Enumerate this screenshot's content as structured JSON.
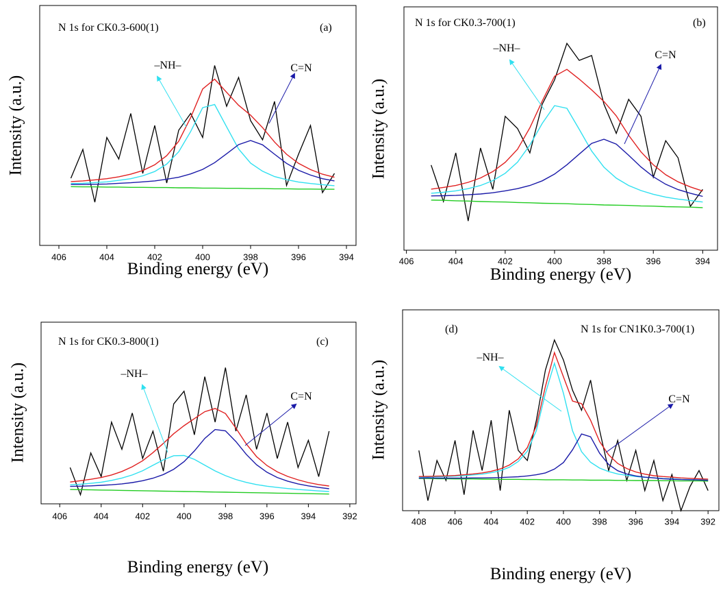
{
  "chart_data": [
    {
      "type": "line",
      "title": "N 1s for CK0.3-600(1)",
      "panel_label": "(a)",
      "xlabel": "Binding energy (eV)",
      "ylabel": "Intensity (a.u.)",
      "x": [
        405.5,
        405,
        404.5,
        404,
        403.5,
        403,
        402.5,
        402,
        401.5,
        401,
        400.5,
        400,
        399.5,
        399,
        398.5,
        398,
        397.5,
        397,
        396.5,
        396,
        395.5,
        395,
        394.5
      ],
      "xlim": [
        406.8,
        393.6
      ],
      "xticks": [
        406,
        404,
        402,
        400,
        398,
        396,
        394
      ],
      "ylim": [
        0,
        100
      ],
      "series": [
        {
          "color": "#000000",
          "values": [
            28,
            40,
            18,
            45,
            36,
            55,
            30,
            50,
            26,
            48,
            55,
            45,
            75,
            58,
            70,
            52,
            44,
            60,
            25,
            38,
            50,
            22,
            30
          ]
        },
        {
          "color": "#22cc22",
          "values": [
            24.5,
            24.4,
            24.4,
            24.3,
            24.3,
            24.2,
            24.2,
            24.1,
            24.1,
            24.0,
            24.0,
            23.9,
            23.9,
            23.8,
            23.8,
            23.7,
            23.7,
            23.6,
            23.6,
            23.5,
            23.5,
            23.4,
            23.4
          ]
        },
        {
          "color": "#30e0f0",
          "values": [
            25.8,
            25.9,
            26.2,
            26.5,
            27.1,
            27.8,
            29.0,
            30.8,
            33.9,
            39.0,
            47.5,
            57.4,
            58.7,
            49.4,
            40.2,
            34.3,
            30.9,
            28.7,
            27.4,
            26.4,
            25.8,
            25.3,
            24.9
          ]
        },
        {
          "color": "#1a1aa8",
          "values": [
            25.4,
            25.4,
            25.5,
            25.6,
            25.9,
            26.1,
            26.5,
            26.9,
            27.6,
            28.4,
            29.8,
            31.7,
            34.5,
            38.2,
            42.0,
            43.7,
            41.9,
            38.0,
            34.2,
            31.3,
            29.3,
            27.8,
            26.9
          ]
        },
        {
          "color": "#e02020",
          "values": [
            26.6,
            26.9,
            27.3,
            27.8,
            28.6,
            29.7,
            31.2,
            33.6,
            37.4,
            43.4,
            53.3,
            65.2,
            69.3,
            63.8,
            58.4,
            54.3,
            49.1,
            43.1,
            38.0,
            34.2,
            31.6,
            29.7,
            28.4
          ]
        }
      ],
      "annotations": [
        {
          "text": "–NH–"
        },
        {
          "text": "C=N"
        }
      ]
    },
    {
      "type": "line",
      "title": "N 1s for CK0.3-700(1)",
      "panel_label": "(b)",
      "xlabel": "Binding energy (eV)",
      "ylabel": "Intensity (a.u.)",
      "x": [
        405,
        404.5,
        404,
        403.5,
        403,
        402.5,
        402,
        401.5,
        401,
        400.5,
        400,
        399.5,
        399,
        398.5,
        398,
        397.5,
        397,
        396.5,
        396,
        395.5,
        395,
        394.5,
        394
      ],
      "xlim": [
        406.1,
        393.4
      ],
      "xticks": [
        406,
        404,
        402,
        400,
        398,
        396,
        394
      ],
      "ylim": [
        0,
        100
      ],
      "series": [
        {
          "color": "#000000",
          "values": [
            35,
            20,
            40,
            12,
            42,
            25,
            55,
            50,
            40,
            60,
            70,
            85,
            78,
            80,
            60,
            48,
            62,
            55,
            30,
            45,
            38,
            18,
            25
          ]
        },
        {
          "color": "#22cc22",
          "values": [
            20.6,
            20.5,
            20.3,
            20.2,
            20.0,
            19.9,
            19.8,
            19.6,
            19.5,
            19.3,
            19.2,
            19.1,
            18.9,
            18.8,
            18.6,
            18.5,
            18.4,
            18.2,
            18.1,
            17.9,
            17.8,
            17.7,
            17.5
          ]
        },
        {
          "color": "#30e0f0",
          "values": [
            23.4,
            23.8,
            24.4,
            25.3,
            26.6,
            28.6,
            31.6,
            36.2,
            43.2,
            52.1,
            59.4,
            58.3,
            49.7,
            40.8,
            34.1,
            29.6,
            26.6,
            24.5,
            23.0,
            21.8,
            21.0,
            20.4,
            19.8
          ]
        },
        {
          "color": "#1a1aa8",
          "values": [
            22.3,
            22.4,
            22.5,
            22.8,
            23.1,
            23.6,
            24.4,
            25.3,
            26.6,
            28.5,
            31.3,
            35.1,
            39.5,
            43.9,
            45.6,
            43.6,
            39.0,
            34.2,
            30.2,
            27.1,
            24.9,
            23.4,
            22.1
          ]
        },
        {
          "color": "#e02020",
          "values": [
            25.1,
            25.8,
            26.6,
            27.9,
            29.7,
            32.3,
            36.1,
            41.5,
            50.3,
            61.3,
            71.5,
            74.3,
            70.3,
            65.9,
            61.1,
            55.2,
            47.2,
            40.4,
            35.1,
            31.0,
            28.1,
            26.0,
            24.3
          ]
        }
      ],
      "annotations": [
        {
          "text": "–NH–"
        },
        {
          "text": "C=N"
        }
      ]
    },
    {
      "type": "line",
      "title": "N 1s for CK0.3-800(1)",
      "panel_label": "(c)",
      "xlabel": "Binding energy (eV)",
      "ylabel": "Intensity (a.u.)",
      "x": [
        405.5,
        405,
        404.5,
        404,
        403.5,
        403,
        402.5,
        402,
        401.5,
        401,
        400.5,
        400,
        399.5,
        399,
        398.5,
        398,
        397.5,
        397,
        396.5,
        396,
        395.5,
        395,
        394.5,
        394,
        393.5,
        393
      ],
      "xlim": [
        406.9,
        391.7
      ],
      "xticks": [
        406,
        404,
        402,
        400,
        398,
        396,
        394,
        392
      ],
      "ylim": [
        0,
        100
      ],
      "series": [
        {
          "color": "#000000",
          "values": [
            20,
            5,
            28,
            15,
            45,
            30,
            50,
            25,
            40,
            18,
            55,
            62,
            38,
            70,
            45,
            75,
            40,
            60,
            30,
            50,
            25,
            45,
            20,
            35,
            15,
            40
          ]
        },
        {
          "color": "#22cc22",
          "values": [
            7.9,
            7.8,
            7.7,
            7.6,
            7.5,
            7.4,
            7.3,
            7.2,
            7.1,
            7.0,
            6.9,
            6.8,
            6.7,
            6.6,
            6.5,
            6.4,
            6.3,
            6.2,
            6.1,
            6.0,
            5.9,
            5.8,
            5.7,
            5.6,
            5.5,
            5.4
          ]
        },
        {
          "color": "#30e0f0",
          "values": [
            10.4,
            10.8,
            11.3,
            11.9,
            12.9,
            14.2,
            15.9,
            18.2,
            21.2,
            24.2,
            26.5,
            26.6,
            24.5,
            21.3,
            18.1,
            15.5,
            13.4,
            11.8,
            10.6,
            9.7,
            9.0,
            8.4,
            7.9,
            7.5,
            7.1,
            6.8
          ]
        },
        {
          "color": "#1a1aa8",
          "values": [
            9.6,
            9.7,
            9.9,
            10.2,
            10.5,
            11.0,
            11.7,
            12.7,
            14.1,
            16.1,
            19.0,
            23.2,
            29.1,
            36.0,
            40.9,
            40.2,
            34.3,
            27.3,
            21.5,
            17.4,
            14.5,
            12.5,
            11.0,
            9.9,
            9.0,
            8.3
          ]
        },
        {
          "color": "#e02020",
          "values": [
            12.0,
            12.7,
            13.5,
            14.5,
            15.9,
            17.8,
            20.4,
            23.7,
            28.2,
            33.3,
            38.6,
            43.0,
            46.9,
            50.7,
            52.5,
            49.7,
            41.7,
            33.0,
            26.0,
            21.1,
            17.6,
            15.1,
            13.2,
            11.7,
            10.6,
            9.8
          ]
        }
      ],
      "annotations": [
        {
          "text": "–NH–"
        },
        {
          "text": "C=N"
        }
      ]
    },
    {
      "type": "line",
      "title": "N 1s for CN1K0.3-700(1)",
      "panel_label": "(d)",
      "xlabel": "Binding energy (eV)",
      "ylabel": "Intensity (a.u.)",
      "x": [
        408,
        407.5,
        407,
        406.5,
        406,
        405.5,
        405,
        404.5,
        404,
        403.5,
        403,
        402.5,
        402,
        401.5,
        401,
        400.5,
        400,
        399.5,
        399,
        398.5,
        398,
        397.5,
        397,
        396.5,
        396,
        395.5,
        395,
        394.5,
        394,
        393.5,
        393,
        392.5,
        392
      ],
      "xlim": [
        408.9,
        391.4
      ],
      "xticks": [
        408,
        406,
        404,
        402,
        400,
        398,
        396,
        394,
        392
      ],
      "ylim": [
        0,
        100
      ],
      "series": [
        {
          "color": "#000000",
          "values": [
            30,
            5,
            25,
            15,
            35,
            8,
            40,
            20,
            45,
            10,
            50,
            30,
            25,
            45,
            70,
            85,
            75,
            60,
            50,
            65,
            40,
            20,
            35,
            15,
            30,
            10,
            25,
            5,
            18,
            0,
            12,
            20,
            10
          ]
        },
        {
          "color": "#22cc22",
          "values": [
            16.0,
            16.0,
            15.9,
            15.9,
            15.8,
            15.8,
            15.8,
            15.7,
            15.7,
            15.6,
            15.6,
            15.6,
            15.5,
            15.5,
            15.4,
            15.4,
            15.4,
            15.3,
            15.3,
            15.2,
            15.2,
            15.2,
            15.1,
            15.1,
            15.0,
            15.0,
            15.0,
            14.9,
            14.9,
            14.8,
            14.8,
            14.8,
            14.7
          ]
        },
        {
          "color": "#30e0f0",
          "values": [
            16.7,
            16.8,
            16.9,
            17.0,
            17.2,
            17.4,
            17.8,
            18.2,
            18.9,
            19.9,
            21.6,
            24.5,
            29.6,
            39.9,
            58.4,
            73.4,
            58.4,
            39.8,
            29.4,
            24.1,
            21.2,
            19.5,
            18.3,
            17.6,
            17.0,
            16.6,
            16.4,
            16.0,
            15.9,
            15.6,
            15.5,
            15.4,
            15.3
          ]
        },
        {
          "color": "#1a1aa8",
          "values": [
            16.2,
            16.3,
            16.2,
            16.2,
            16.2,
            16.2,
            16.3,
            16.3,
            16.4,
            16.5,
            16.7,
            16.9,
            17.3,
            17.9,
            18.8,
            20.7,
            24.0,
            30.3,
            38.2,
            36.8,
            28.6,
            23.0,
            19.9,
            18.3,
            17.3,
            16.7,
            16.3,
            15.9,
            15.7,
            15.5,
            15.4,
            15.3,
            15.1
          ]
        },
        {
          "color": "#e02020",
          "values": [
            17.0,
            17.1,
            17.2,
            17.3,
            17.5,
            17.9,
            18.3,
            18.8,
            19.6,
            20.8,
            22.7,
            25.8,
            31.4,
            42.3,
            61.8,
            78.7,
            66.6,
            54.6,
            53.3,
            45.0,
            34.4,
            27.8,
            23.5,
            21.0,
            19.3,
            18.2,
            17.4,
            17.0,
            16.7,
            16.3,
            16.1,
            15.9,
            15.7
          ]
        }
      ],
      "annotations": [
        {
          "text": "–NH–"
        },
        {
          "text": "C=N"
        }
      ]
    }
  ]
}
